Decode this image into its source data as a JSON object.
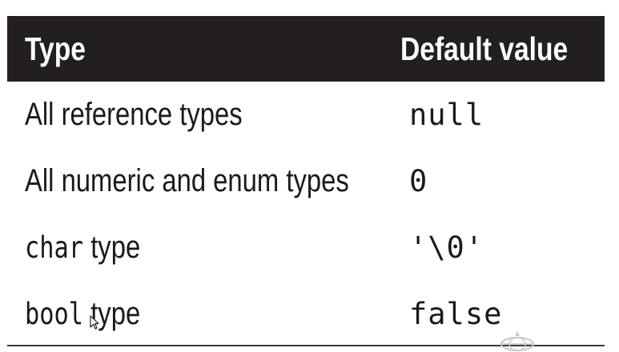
{
  "table": {
    "headers": [
      "Type",
      "Default value"
    ],
    "rows": [
      {
        "type": "All reference types",
        "type_code": "",
        "type_suffix": "",
        "default": "null"
      },
      {
        "type": "All numeric and enum types",
        "type_code": "",
        "type_suffix": "",
        "default": "0"
      },
      {
        "type": "",
        "type_code": "char",
        "type_suffix": "type",
        "default": "'\\0'"
      },
      {
        "type": "",
        "type_code": "bool",
        "type_suffix": "type",
        "default": "false"
      }
    ]
  },
  "colors": {
    "header_bg": "#231f20",
    "header_text": "#ffffff",
    "body_text": "#1a1a1a"
  }
}
